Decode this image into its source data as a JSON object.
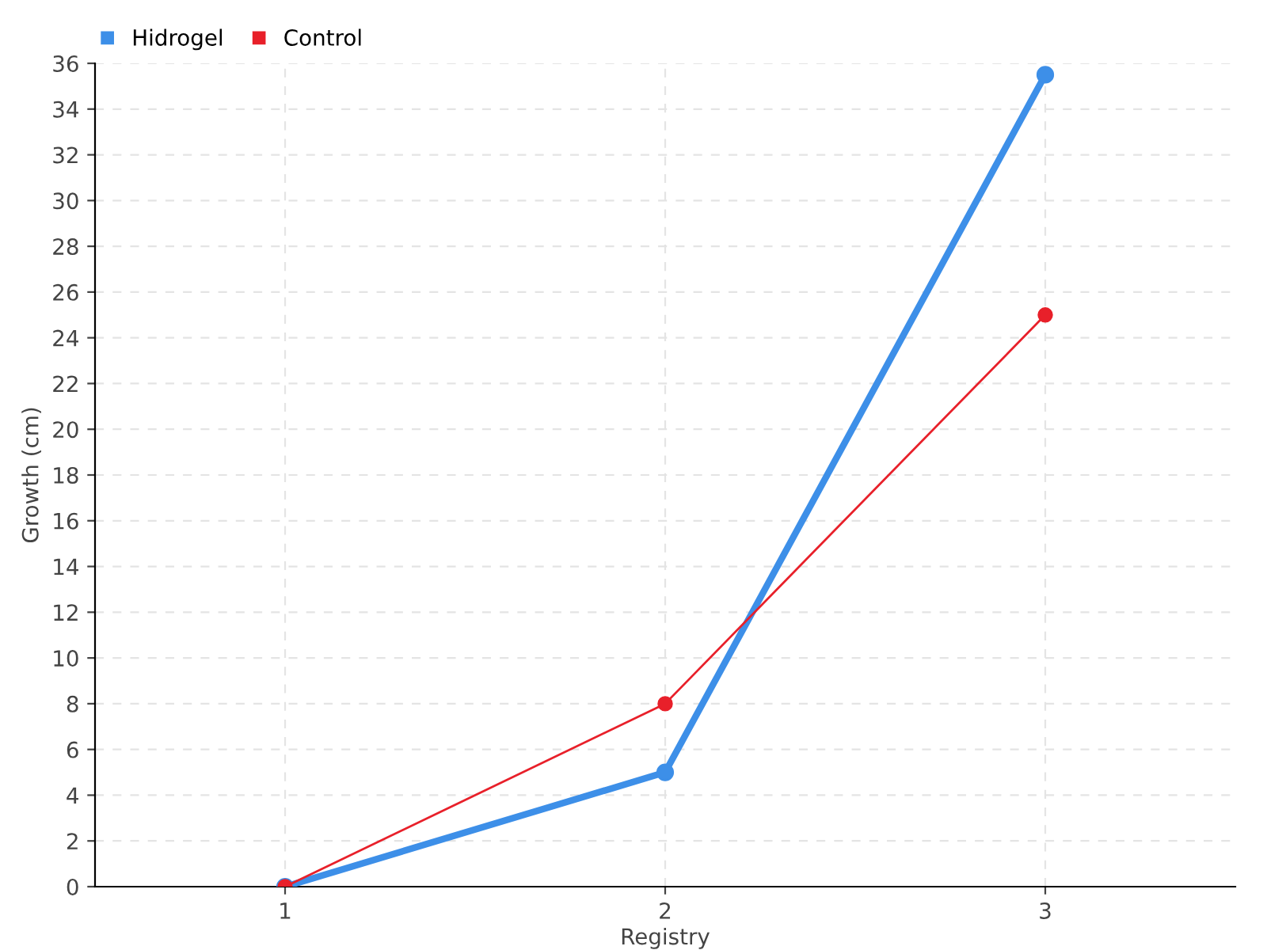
{
  "chart_data": {
    "type": "line",
    "xlabel": "Registry",
    "ylabel": "Growth (cm)",
    "categories": [
      "1",
      "2",
      "3"
    ],
    "series": [
      {
        "name": "Hidrogel",
        "color": "#3d8fe8",
        "values": [
          0,
          5,
          35.5
        ]
      },
      {
        "name": "Control",
        "color": "#e8202a",
        "values": [
          0,
          8,
          25
        ]
      }
    ],
    "ylim": [
      0,
      36
    ],
    "yticks": [
      0,
      2,
      4,
      6,
      8,
      10,
      12,
      14,
      16,
      18,
      20,
      22,
      24,
      26,
      28,
      30,
      32,
      34,
      36
    ],
    "grid": true,
    "legend": "top left",
    "marker": "circle",
    "line_style": "solid"
  }
}
